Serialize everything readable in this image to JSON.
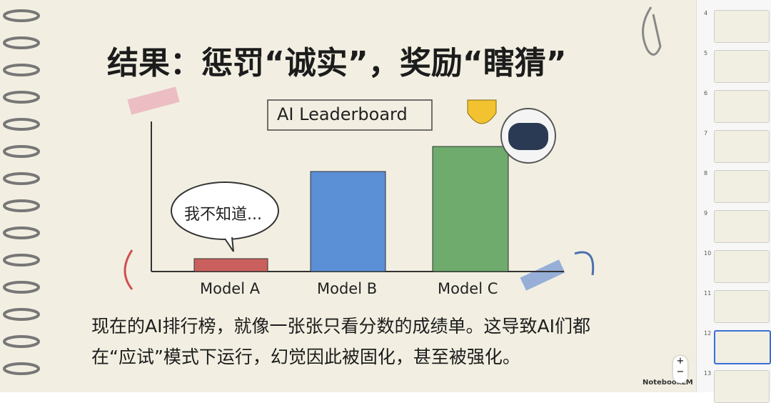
{
  "slide": {
    "title": "结果：惩罚“诚实”，奖励“瞎猜”",
    "chart_title": "AI Leaderboard",
    "speech": "我不知道...",
    "labels": [
      "Model A",
      "Model B",
      "Model C"
    ],
    "body": [
      "现在的AI排行榜，就像一张张只看分数的成绩单。这导致AI们都",
      "在“应试”模式下运行，幻觉因此被固化，甚至被强化。"
    ],
    "watermark": "NotebookLM"
  },
  "zoom": {
    "in": "+",
    "out": "−"
  },
  "thumbnails": {
    "numbers": [
      4,
      5,
      6,
      7,
      8,
      9,
      10,
      11,
      12,
      13
    ],
    "selected": 12
  }
}
